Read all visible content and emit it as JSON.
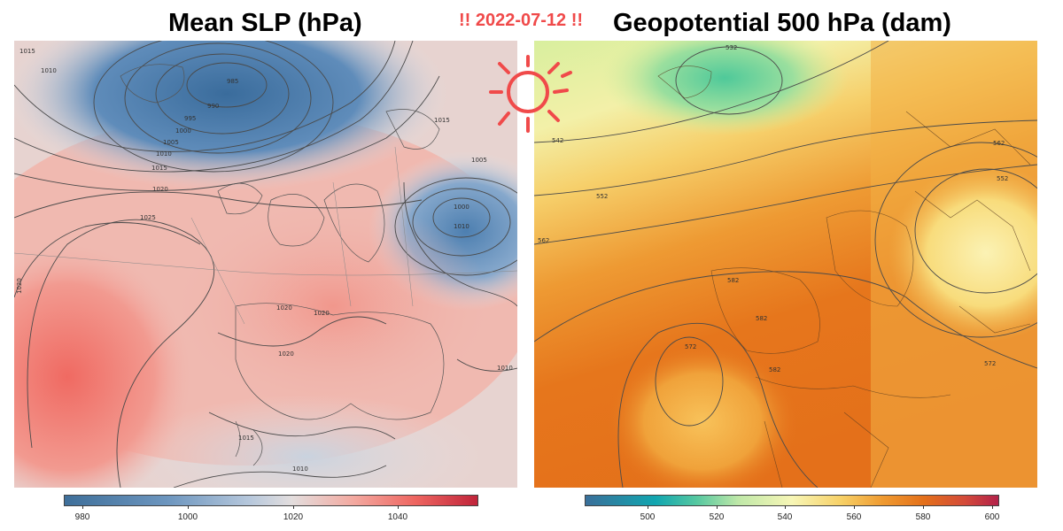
{
  "date_label": "!! 2022-07-12 !!",
  "left_panel": {
    "title": "Mean SLP (hPa)",
    "colorbar_ticks": [
      "980",
      "1000",
      "1020",
      "1040"
    ],
    "colors": {
      "low": "#3e6f9a",
      "neutral": "#e3dede",
      "high": "#ee6560"
    },
    "contour_labels": [
      "1015",
      "1010",
      "985",
      "990",
      "995",
      "1000",
      "1005",
      "1010",
      "1015",
      "1020",
      "1025",
      "1015",
      "1005",
      "1000",
      "1010",
      "1020",
      "1020",
      "1020",
      "1015",
      "1010",
      "1010",
      "1020"
    ]
  },
  "right_panel": {
    "title": "Geopotential 500 hPa (dam)",
    "colorbar_ticks": [
      "500",
      "520",
      "540",
      "560",
      "580",
      "600"
    ],
    "colors": {
      "low": "#3a6f9a",
      "mid": "#f7f6b6",
      "high": "#e4701a"
    },
    "contour_labels": [
      "532",
      "542",
      "552",
      "562",
      "582",
      "582",
      "572",
      "582",
      "562",
      "552",
      "572"
    ]
  },
  "decoration": {
    "sun_icon": "sun-icon",
    "accent_color": "#f04a4a"
  }
}
